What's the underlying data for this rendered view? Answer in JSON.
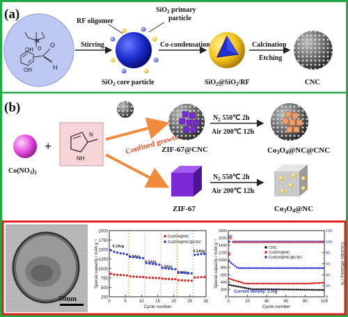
{
  "panel_a": {
    "label": "(a)",
    "rf_oligomer": "RF oligomer",
    "sio2_primary_line1": "SiO",
    "sio2_primary_line2": "2",
    "sio2_primary_line3": " primary",
    "sio2_primary_line4": "particle",
    "stirring": "Stirring",
    "co_condensation": "Co-condensation",
    "calcination": "Calcination",
    "etching": "Etching",
    "core_label": "SiO",
    "core_sub": "2",
    "core_rest": " core particle",
    "shell_a": "SiO",
    "shell_b": "2",
    "shell_c": "@SiO",
    "shell_d": "2",
    "shell_e": "/RF",
    "cnc": "CNC",
    "mol_oh1": "OH",
    "mol_oh2": "OH",
    "mol_o": "O",
    "mol_h": "H",
    "mol_si": "Si",
    "mol_o2": "O"
  },
  "panel_b": {
    "label": "(b)",
    "co_no3_a": "Co(NO",
    "co_no3_b": "3",
    "co_no3_c": ")",
    "co_no3_d": "2",
    "plus": "+",
    "imid_nh": "NH",
    "imid_n": "N",
    "confined_growth": "Confined growth",
    "zif67cnc": "ZIF-67@CNC",
    "zif67": "ZIF-67",
    "n2_top": "N",
    "n2_top_sub": "2",
    "n2_top_rest": "  550℃ 2h",
    "air_top": "Air  200℃ 12h",
    "n2_bot": "N",
    "n2_bot_sub": "2",
    "n2_bot_rest": "  550℃ 2h",
    "air_bot": "Air  200℃ 12h",
    "co3o4_nc_cnc_a": "Co",
    "co3o4_nc_cnc_b": "3",
    "co3o4_nc_cnc_c": "O",
    "co3o4_nc_cnc_d": "4",
    "co3o4_nc_cnc_e": "@NC@CNC",
    "co3o4_nc_a": "Co",
    "co3o4_nc_b": "3",
    "co3o4_nc_c": "O",
    "co3o4_nc_d": "4",
    "co3o4_nc_e": "@NC"
  },
  "bottom": {
    "scale_bar": "50nm",
    "rate_chart": {
      "ylabel": "Special capacity / mAh g⁻¹",
      "xlabel": "Cycle number",
      "yticks": [
        "250",
        "500",
        "750",
        "1000",
        "1250",
        "1500",
        "1750",
        "2000"
      ],
      "xticks": [
        "0",
        "5",
        "10",
        "15",
        "20",
        "25",
        "30"
      ],
      "legend": [
        "Co3O4@NC",
        "Co3O4@NC@CNC"
      ],
      "rates": [
        "0.1A/g",
        "0.2A/g",
        "0.5A/g",
        "1.0A/g",
        "2.0A/g",
        "0.1A/g"
      ]
    },
    "cycle_chart": {
      "ylabel": "Special capacity / mAh g⁻¹",
      "y2label": "Columbic efficiency / %",
      "xlabel": "Cycle number",
      "yticks": [
        "0",
        "200",
        "400",
        "600",
        "800",
        "1000",
        "1200",
        "1400",
        "1600",
        "1800"
      ],
      "y2ticks": [
        "0",
        "20",
        "40",
        "60",
        "80",
        "100",
        "120"
      ],
      "xticks": [
        "0",
        "20",
        "40",
        "60",
        "80",
        "100"
      ],
      "legend": [
        "CNC",
        "Co3O4@NC",
        "Co3O4@NC@CNC"
      ],
      "current_density": "Current density: 2 A/g"
    }
  },
  "colors": {
    "green_border": "#22a845",
    "red_border": "#e02020",
    "arrow_orange": "#f08a3c",
    "blue_sphere": "#1f2fd0",
    "zif_purple": "#7b2ad6",
    "co_pink": "#e24be0",
    "red_series": "#d81c1c",
    "blue_series": "#2636d8",
    "black_series": "#111111"
  }
}
